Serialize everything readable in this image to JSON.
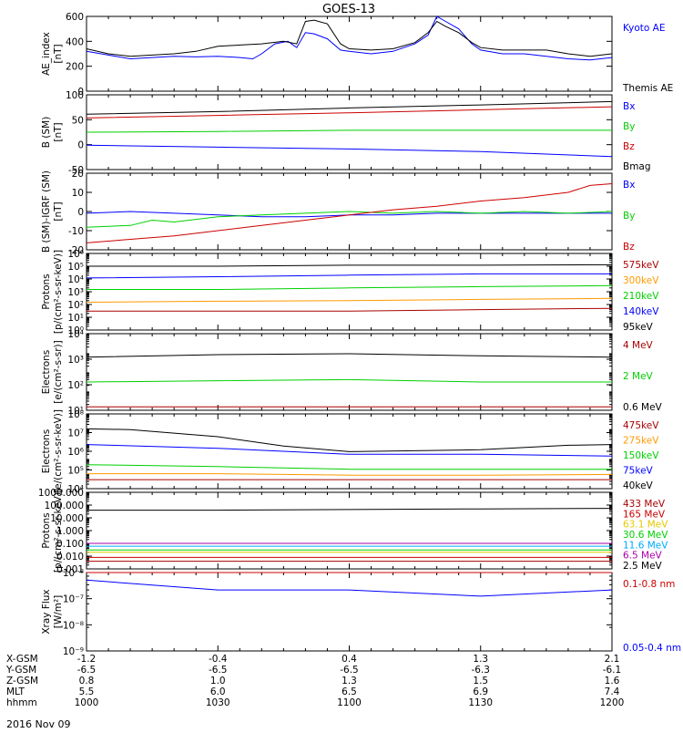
{
  "title": "GOES-13",
  "colors": {
    "black": "#000000",
    "blue": "#0000ff",
    "green": "#00d000",
    "red": "#cc0000",
    "darkred": "#aa0000",
    "orange": "#ff9900",
    "yellow": "#e6c800",
    "cyan": "#00aaff",
    "purple": "#aa00aa"
  },
  "axis_rows": [
    {
      "label": "X-GSM",
      "values": [
        "-1.2",
        "-0.4",
        "0.4",
        "1.3",
        "2.1"
      ]
    },
    {
      "label": "Y-GSM",
      "values": [
        "-6.5",
        "-6.5",
        "-6.5",
        "-6.3",
        "-6.1"
      ]
    },
    {
      "label": "Z-GSM",
      "values": [
        "0.8",
        "1.0",
        "1.3",
        "1.5",
        "1.6"
      ]
    },
    {
      "label": "MLT",
      "values": [
        "5.5",
        "6.0",
        "6.5",
        "6.9",
        "7.4"
      ]
    },
    {
      "label": "hhmm",
      "values": [
        "1000",
        "1030",
        "1100",
        "1130",
        "1200"
      ]
    }
  ],
  "date_label": "2016 Nov 09",
  "chart_data": [
    {
      "type": "line",
      "ylabel": "AE_index\n[nT]",
      "ylim": [
        0,
        600
      ],
      "yscale": "linear",
      "yticks": [
        "0",
        "200",
        "400",
        "600"
      ],
      "series": [
        {
          "name": "Kyoto AE",
          "color": "#0000ff",
          "x": [
            1000,
            1005,
            1010,
            1015,
            1020,
            1025,
            1030,
            1035,
            1038,
            1040,
            1043,
            1046,
            1048,
            1050,
            1052,
            1055,
            1058,
            1100,
            1105,
            1110,
            1115,
            1118,
            1120,
            1122,
            1125,
            1128,
            1130,
            1135,
            1140,
            1145,
            1150,
            1155,
            1200
          ],
          "y": [
            320,
            290,
            260,
            270,
            280,
            275,
            280,
            270,
            260,
            300,
            380,
            400,
            350,
            470,
            460,
            420,
            330,
            320,
            300,
            320,
            380,
            450,
            600,
            560,
            500,
            380,
            330,
            300,
            300,
            280,
            260,
            250,
            270
          ]
        },
        {
          "name": "Themis AE",
          "color": "#000000",
          "x": [
            1000,
            1005,
            1010,
            1015,
            1020,
            1025,
            1030,
            1035,
            1040,
            1045,
            1048,
            1050,
            1052,
            1055,
            1058,
            1100,
            1105,
            1110,
            1115,
            1118,
            1120,
            1122,
            1125,
            1128,
            1130,
            1135,
            1140,
            1145,
            1150,
            1155,
            1200
          ],
          "y": [
            340,
            300,
            280,
            290,
            300,
            320,
            360,
            370,
            380,
            400,
            380,
            560,
            570,
            540,
            380,
            340,
            330,
            340,
            390,
            470,
            560,
            520,
            470,
            390,
            350,
            330,
            330,
            330,
            300,
            280,
            300
          ]
        }
      ]
    },
    {
      "type": "line",
      "ylabel": "B (SM)\n[nT]",
      "ylim": [
        -60,
        140
      ],
      "yscale": "linear",
      "yticks": [
        "-50",
        "0",
        "50",
        "100"
      ],
      "series": [
        {
          "name": "Bx",
          "color": "#0000ff",
          "x": [
            1000,
            1030,
            1100,
            1130,
            1200
          ],
          "y": [
            5,
            0,
            -5,
            -12,
            -25
          ]
        },
        {
          "name": "By",
          "color": "#00d000",
          "x": [
            1000,
            1030,
            1100,
            1130,
            1200
          ],
          "y": [
            40,
            42,
            45,
            45,
            45
          ]
        },
        {
          "name": "Bz",
          "color": "#cc0000",
          "x": [
            1000,
            1030,
            1100,
            1130,
            1200
          ],
          "y": [
            78,
            85,
            92,
            100,
            108
          ]
        },
        {
          "name": "Bmag",
          "color": "#000000",
          "x": [
            1000,
            1030,
            1100,
            1130,
            1200
          ],
          "y": [
            88,
            95,
            105,
            113,
            122
          ]
        }
      ]
    },
    {
      "type": "line",
      "ylabel": "B (SM)-IGRF (SM)\n[nT]",
      "ylim": [
        -22,
        22
      ],
      "yscale": "linear",
      "yticks": [
        "-20",
        "-10",
        "0",
        "10",
        "20"
      ],
      "series": [
        {
          "name": "Bx",
          "color": "#0000ff",
          "x": [
            1000,
            1010,
            1020,
            1030,
            1040,
            1050,
            1100,
            1110,
            1120,
            1130,
            1140,
            1150,
            1200
          ],
          "y": [
            -1,
            0,
            -1,
            -2,
            -3,
            -3,
            -2,
            -2,
            -1,
            -1,
            -1,
            -1,
            -1
          ]
        },
        {
          "name": "By",
          "color": "#00d000",
          "x": [
            1000,
            1010,
            1015,
            1020,
            1030,
            1040,
            1050,
            1100,
            1110,
            1120,
            1130,
            1140,
            1150,
            1200
          ],
          "y": [
            -9,
            -8,
            -5,
            -6,
            -3,
            -2,
            -1,
            0,
            -1,
            0,
            -1,
            0,
            -1,
            0
          ]
        },
        {
          "name": "Bz",
          "color": "#cc0000",
          "x": [
            1000,
            1010,
            1020,
            1030,
            1040,
            1050,
            1100,
            1110,
            1120,
            1130,
            1140,
            1150,
            1155,
            1200
          ],
          "y": [
            -18,
            -16,
            -14,
            -11,
            -8,
            -5,
            -2,
            1,
            3,
            6,
            8,
            11,
            15,
            16
          ]
        }
      ]
    },
    {
      "type": "line",
      "ylabel": "Protons\n[p/(cm²-s-sr-keV)]",
      "ylim": [
        1,
        1000000
      ],
      "yscale": "log",
      "yticks": [
        "10⁰",
        "10¹",
        "10²",
        "10³",
        "10⁴",
        "10⁵",
        "10⁶"
      ],
      "series": [
        {
          "name": "575keV",
          "color": "#aa0000",
          "x": [
            1000,
            1030,
            1100,
            1130,
            1200
          ],
          "y": [
            30,
            30,
            30,
            40,
            50
          ]
        },
        {
          "name": "300keV",
          "color": "#ff9900",
          "x": [
            1000,
            1030,
            1100,
            1130,
            1200
          ],
          "y": [
            150,
            180,
            200,
            250,
            300
          ]
        },
        {
          "name": "210keV",
          "color": "#00d000",
          "x": [
            1000,
            1030,
            1100,
            1130,
            1200
          ],
          "y": [
            1500,
            1500,
            2000,
            2500,
            3000
          ]
        },
        {
          "name": "140keV",
          "color": "#0000ff",
          "x": [
            1000,
            1030,
            1100,
            1130,
            1200
          ],
          "y": [
            12000,
            15000,
            20000,
            25000,
            25000
          ]
        },
        {
          "name": "95keV",
          "color": "#000000",
          "x": [
            1000,
            1030,
            1100,
            1130,
            1200
          ],
          "y": [
            100000,
            100000,
            120000,
            120000,
            130000
          ]
        }
      ]
    },
    {
      "type": "line",
      "ylabel": "Electrons\n[e/(cm²-s-sr)]",
      "ylim": [
        10,
        100000
      ],
      "yscale": "log",
      "yticks": [
        "10¹",
        "10²",
        "10³",
        "10⁴"
      ],
      "series": [
        {
          "name": "4 MeV",
          "color": "#aa0000",
          "x": [
            1000,
            1030,
            1100,
            1130,
            1200
          ],
          "y": [
            15,
            15,
            15,
            15,
            15
          ]
        },
        {
          "name": "2 MeV",
          "color": "#00d000",
          "x": [
            1000,
            1030,
            1100,
            1130,
            1200
          ],
          "y": [
            300,
            350,
            400,
            300,
            300
          ]
        },
        {
          "name": "0.6 MeV",
          "color": "#000000",
          "x": [
            1000,
            1030,
            1100,
            1130,
            1200
          ],
          "y": [
            6000,
            8000,
            9000,
            7000,
            6000
          ]
        }
      ]
    },
    {
      "type": "line",
      "ylabel": "Electrons\n[e/(cm²-s-sr-keV)]",
      "ylim": [
        1000,
        100000000
      ],
      "yscale": "log",
      "yticks": [
        "10⁴",
        "10⁵",
        "10⁶",
        "10⁷",
        "10⁸"
      ],
      "series": [
        {
          "name": "475keV",
          "color": "#aa0000",
          "x": [
            1000,
            1030,
            1100,
            1130,
            1200
          ],
          "y": [
            4000,
            4000,
            4000,
            4000,
            4000
          ]
        },
        {
          "name": "275keV",
          "color": "#ff9900",
          "x": [
            1000,
            1030,
            1100,
            1130,
            1200
          ],
          "y": [
            10000,
            10000,
            8000,
            8000,
            9000
          ]
        },
        {
          "name": "150keV",
          "color": "#00d000",
          "x": [
            1000,
            1030,
            1100,
            1130,
            1200
          ],
          "y": [
            40000,
            30000,
            20000,
            20000,
            20000
          ]
        },
        {
          "name": "75keV",
          "color": "#0000ff",
          "x": [
            1000,
            1030,
            1100,
            1130,
            1200
          ],
          "y": [
            900000,
            500000,
            200000,
            200000,
            150000
          ]
        },
        {
          "name": "40keV",
          "color": "#000000",
          "x": [
            1000,
            1010,
            1030,
            1045,
            1100,
            1130,
            1150,
            1200
          ],
          "y": [
            10000000,
            9000000,
            3000000,
            700000,
            300000,
            400000,
            800000,
            900000
          ]
        }
      ]
    },
    {
      "type": "line",
      "ylabel": "Protons\n[p/(cm²-s-sr-keV)]",
      "ylim": [
        0.001,
        1000
      ],
      "yscale": "log",
      "yticks": [
        "0.001",
        "0.010",
        "0.100",
        "1.000",
        "10.000",
        "100.000",
        "1000.000"
      ],
      "series": [
        {
          "name": "433 MeV",
          "color": "#aa0000",
          "x": [
            1000,
            1030,
            1100,
            1130,
            1200
          ],
          "y": [
            0.004,
            0.004,
            0.004,
            0.004,
            0.004
          ]
        },
        {
          "name": "165 MeV",
          "color": "#cc0000",
          "x": [
            1000,
            1030,
            1100,
            1130,
            1200
          ],
          "y": [
            0.008,
            0.008,
            0.008,
            0.008,
            0.008
          ]
        },
        {
          "name": "63.1 MeV",
          "color": "#e6c800",
          "x": [
            1000,
            1030,
            1100,
            1130,
            1200
          ],
          "y": [
            0.02,
            0.02,
            0.02,
            0.02,
            0.02
          ]
        },
        {
          "name": "30.6 MeV",
          "color": "#00d000",
          "x": [
            1000,
            1030,
            1100,
            1130,
            1200
          ],
          "y": [
            0.03,
            0.03,
            0.03,
            0.03,
            0.03
          ]
        },
        {
          "name": "11.6 MeV",
          "color": "#00aaff",
          "x": [
            1000,
            1030,
            1100,
            1130,
            1200
          ],
          "y": [
            0.06,
            0.06,
            0.06,
            0.06,
            0.06
          ]
        },
        {
          "name": "6.5 MeV",
          "color": "#aa00aa",
          "x": [
            1000,
            1030,
            1100,
            1130,
            1200
          ],
          "y": [
            0.1,
            0.1,
            0.1,
            0.1,
            0.1
          ]
        },
        {
          "name": "2.5 MeV",
          "color": "#000000",
          "x": [
            1000,
            1030,
            1100,
            1130,
            1200
          ],
          "y": [
            40,
            40,
            45,
            50,
            55
          ]
        }
      ]
    },
    {
      "type": "line",
      "ylabel": "Xray Flux\n[W/m²]",
      "ylim": [
        1e-09,
        1e-08
      ],
      "yscale": "log",
      "yticks": [
        "10⁻⁹",
        "10⁻⁸",
        "10⁻⁷",
        "10⁻⁸"
      ],
      "note": "tick labels reproduced as printed",
      "series": [
        {
          "name": "0.1-0.8 nm",
          "color": "#cc0000",
          "x": [
            1000,
            1030,
            1100,
            1130,
            1200
          ],
          "y": [
            1.8e-07,
            1.8e-07,
            1.8e-07,
            1.8e-07,
            1.8e-07
          ]
        },
        {
          "name": "0.05-0.4 nm",
          "color": "#0000ff",
          "x": [
            1000,
            1030,
            1100,
            1130,
            1200
          ],
          "y": [
            8e-09,
            6e-09,
            6e-09,
            5e-09,
            6e-09
          ]
        }
      ]
    }
  ]
}
